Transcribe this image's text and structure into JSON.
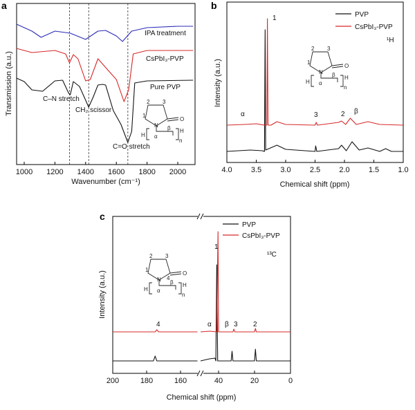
{
  "chart_data": [
    {
      "panel": "a",
      "type": "line",
      "xlabel": "Wavenumber (cm⁻¹)",
      "ylabel": "Transmission (a.u.)",
      "xlim": [
        950,
        2100
      ],
      "xticks": [
        1000,
        1200,
        1400,
        1600,
        1800,
        2000
      ],
      "grid": false,
      "reference_lines_x": [
        1295,
        1420,
        1675
      ],
      "annotations": [
        "C–N stretch",
        "CH₂ scissor",
        "C=O stretch"
      ],
      "series": [
        {
          "name": "IPA treatment",
          "color": "#2a2ab8",
          "points": [
            [
              950,
              205
            ],
            [
              1050,
              195
            ],
            [
              1110,
              186
            ],
            [
              1200,
              195
            ],
            [
              1300,
              192
            ],
            [
              1400,
              183
            ],
            [
              1480,
              195
            ],
            [
              1530,
              196
            ],
            [
              1600,
              188
            ],
            [
              1640,
              180
            ],
            [
              1700,
              195
            ],
            [
              1800,
              200
            ],
            [
              2000,
              202
            ],
            [
              2100,
              202
            ]
          ]
        },
        {
          "name": "CsPbI₃-PVP",
          "color": "#d62828",
          "points": [
            [
              950,
              170
            ],
            [
              1050,
              164
            ],
            [
              1200,
              167
            ],
            [
              1270,
              162
            ],
            [
              1295,
              149
            ],
            [
              1320,
              161
            ],
            [
              1350,
              155
            ],
            [
              1400,
              123
            ],
            [
              1430,
              125
            ],
            [
              1480,
              155
            ],
            [
              1520,
              145
            ],
            [
              1600,
              125
            ],
            [
              1650,
              93
            ],
            [
              1680,
              110
            ],
            [
              1710,
              162
            ],
            [
              1800,
              167
            ],
            [
              2100,
              167
            ]
          ]
        },
        {
          "name": "Pure PVP",
          "color": "#111111",
          "points": [
            [
              950,
              127
            ],
            [
              1000,
              122
            ],
            [
              1050,
              110
            ],
            [
              1120,
              108
            ],
            [
              1200,
              123
            ],
            [
              1250,
              124
            ],
            [
              1290,
              105
            ],
            [
              1300,
              103
            ],
            [
              1320,
              122
            ],
            [
              1360,
              115
            ],
            [
              1400,
              95
            ],
            [
              1420,
              85
            ],
            [
              1450,
              100
            ],
            [
              1480,
              117
            ],
            [
              1510,
              118
            ],
            [
              1530,
              117
            ],
            [
              1580,
              80
            ],
            [
              1630,
              60
            ],
            [
              1675,
              34
            ],
            [
              1700,
              50
            ],
            [
              1720,
              120
            ],
            [
              1800,
              123
            ],
            [
              2100,
              124
            ]
          ]
        }
      ],
      "molecule": {
        "labels": [
          "2",
          "3",
          "1",
          "N",
          "O",
          "H",
          "α",
          "β",
          "H",
          "n"
        ]
      }
    },
    {
      "panel": "b",
      "type": "line",
      "xlabel": "Chemical shift (ppm)",
      "ylabel": "Intensity (a.u.)",
      "xlim": [
        4.0,
        1.0
      ],
      "xticks": [
        "4.0",
        "3.5",
        "3.0",
        "2.5",
        "2.0",
        "1.5",
        "1.0"
      ],
      "grid": false,
      "legend": "top-right",
      "nucleus": "¹H",
      "peak_labels": [
        "1",
        "α",
        "3",
        "2",
        "β"
      ],
      "series": [
        {
          "name": "PVP",
          "color": "#111111",
          "points": [
            [
              4.0,
              21
            ],
            [
              3.6,
              23
            ],
            [
              3.4,
              22
            ],
            [
              3.36,
              21
            ],
            [
              3.35,
              197
            ],
            [
              3.34,
              23
            ],
            [
              3.15,
              30
            ],
            [
              3.0,
              24
            ],
            [
              2.5,
              21
            ],
            [
              2.49,
              29
            ],
            [
              2.47,
              21
            ],
            [
              2.1,
              25
            ],
            [
              2.05,
              30
            ],
            [
              1.97,
              22
            ],
            [
              1.87,
              35
            ],
            [
              1.75,
              23
            ],
            [
              1.6,
              26
            ],
            [
              1.4,
              21
            ],
            [
              1.3,
              25
            ],
            [
              1.2,
              21
            ],
            [
              1.0,
              21
            ]
          ]
        },
        {
          "name": "CsPbI₃-PVP",
          "color": "#d62828",
          "points": [
            [
              4.0,
              59
            ],
            [
              3.7,
              60
            ],
            [
              3.5,
              61
            ],
            [
              3.36,
              59
            ],
            [
              3.32,
              59
            ],
            [
              3.31,
              213
            ],
            [
              3.3,
              59
            ],
            [
              3.25,
              59
            ],
            [
              3.15,
              64
            ],
            [
              3.0,
              60
            ],
            [
              2.5,
              59
            ],
            [
              2.48,
              63
            ],
            [
              2.46,
              59
            ],
            [
              2.1,
              63
            ],
            [
              2.05,
              65
            ],
            [
              1.98,
              60
            ],
            [
              1.9,
              69
            ],
            [
              1.8,
              60
            ],
            [
              1.6,
              64
            ],
            [
              1.4,
              60
            ],
            [
              1.0,
              59
            ]
          ]
        }
      ],
      "molecule": {
        "labels": [
          "2",
          "3",
          "1",
          "N",
          "O",
          "H",
          "α",
          "β",
          "H",
          "n"
        ]
      }
    },
    {
      "panel": "c",
      "type": "line",
      "xlabel": "Chemical shift (ppm)",
      "ylabel": "Intensity (a.u.)",
      "xlim": [
        200,
        0
      ],
      "axis_break": [
        150,
        50
      ],
      "xticks": [
        "200",
        "180",
        "160",
        "40",
        "20",
        "0"
      ],
      "grid": false,
      "legend": "top-right",
      "nucleus": "¹³C",
      "peak_labels": [
        "1",
        "4",
        "α",
        "β",
        "3",
        "2"
      ],
      "series": [
        {
          "name": "PVP",
          "color": "#111111",
          "points": [
            [
              200,
              23
            ],
            [
              176,
              23
            ],
            [
              175,
              30
            ],
            [
              174,
              23
            ],
            [
              150,
              23
            ],
            null,
            [
              50,
              23
            ],
            [
              45,
              26
            ],
            [
              42,
              27
            ],
            [
              41.5,
              23
            ],
            [
              41,
              162
            ],
            [
              40.5,
              23
            ],
            [
              33,
              23
            ],
            [
              32.5,
              37
            ],
            [
              32,
              23
            ],
            [
              20,
              23
            ],
            [
              19.5,
              40
            ],
            [
              19,
              23
            ],
            [
              0,
              23
            ]
          ]
        },
        {
          "name": "CsPbI₃-PVP",
          "color": "#d62828",
          "points": [
            [
              200,
              65
            ],
            [
              175,
              65
            ],
            [
              174,
              68
            ],
            [
              173,
              65
            ],
            [
              150,
              65
            ],
            null,
            [
              50,
              65
            ],
            [
              45,
              66
            ],
            [
              41,
              65
            ],
            [
              40.3,
              210
            ],
            [
              40,
              65
            ],
            [
              32,
              65
            ],
            [
              31.5,
              69
            ],
            [
              31,
              65
            ],
            [
              20,
              65
            ],
            [
              19.5,
              70
            ],
            [
              19,
              65
            ],
            [
              0,
              65
            ]
          ]
        }
      ],
      "molecule": {
        "labels": [
          "2",
          "3",
          "1",
          "N",
          "4",
          "O",
          "H",
          "α",
          "β",
          "H",
          "n"
        ]
      }
    }
  ]
}
